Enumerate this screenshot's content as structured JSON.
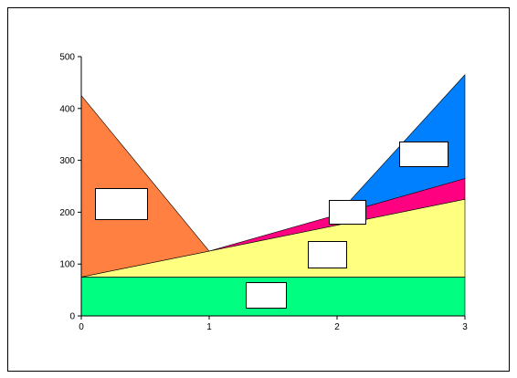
{
  "chart_data": {
    "type": "polygon",
    "series": [
      {
        "color": "#00ff80",
        "x": [
          0,
          3,
          3,
          0
        ],
        "values": [
          0,
          0,
          75,
          75
        ]
      },
      {
        "color": "#ffff80",
        "x": [
          0,
          3,
          3
        ],
        "values": [
          75,
          75,
          225
        ]
      },
      {
        "color": "#ff8040",
        "x": [
          0,
          0,
          1
        ],
        "values": [
          75,
          425,
          125
        ]
      },
      {
        "color": "#ff0080",
        "x": [
          1,
          3,
          3
        ],
        "values": [
          125,
          225,
          265
        ]
      },
      {
        "color": "#0080ff",
        "x": [
          2,
          3,
          3
        ],
        "values": [
          195,
          265,
          465
        ]
      }
    ],
    "xlim": [
      0,
      3
    ],
    "ylim": [
      0,
      500
    ],
    "xticks": [
      0,
      1,
      2,
      3
    ],
    "yticks": [
      0,
      100,
      200,
      300,
      400,
      500
    ]
  }
}
